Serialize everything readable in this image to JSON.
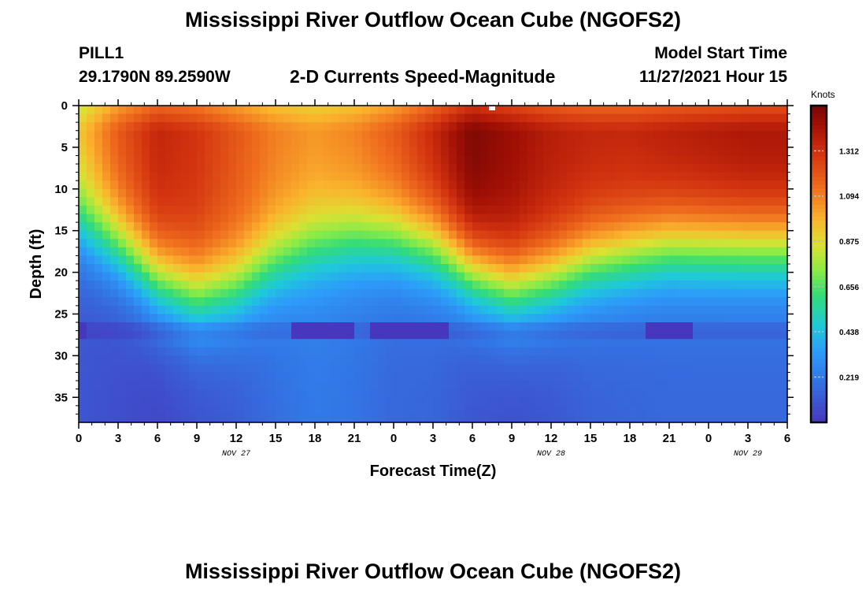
{
  "title_top": "Mississippi River Outflow Ocean Cube (NGOFS2)",
  "title_bottom": "Mississippi River Outflow Ocean Cube (NGOFS2)",
  "station": {
    "id": "PILL1",
    "coords": "29.1790N  89.2590W"
  },
  "model": {
    "label": "Model Start Time",
    "value": "11/27/2021 Hour 15"
  },
  "chart_data": {
    "type": "heatmap",
    "title": "2-D Currents Speed-Magnitude",
    "xlabel": "Forecast Time(Z)",
    "ylabel": "Depth (ft)",
    "x_ticks": [
      "0",
      "3",
      "6",
      "9",
      "12",
      "15",
      "18",
      "21",
      "0",
      "3",
      "6",
      "9",
      "12",
      "15",
      "18",
      "21",
      "0",
      "3",
      "6"
    ],
    "x_hours_from_start": [
      0,
      54
    ],
    "y_ticks": [
      0,
      5,
      10,
      15,
      20,
      25,
      30,
      35
    ],
    "ylim": [
      0,
      38
    ],
    "date_labels": [
      {
        "text": "NOV 27",
        "at_hour": 12
      },
      {
        "text": "NOV 28",
        "at_hour": 36
      },
      {
        "text": "NOV 29",
        "at_hour": 51
      }
    ],
    "colorbar": {
      "unit": "Knots",
      "ticks": [
        "1.312",
        "1.094",
        "0.875",
        "0.656",
        "0.438",
        "0.219"
      ],
      "tick_values": [
        1.312,
        1.094,
        0.875,
        0.656,
        0.438,
        0.219
      ],
      "range": [
        0,
        1.531
      ]
    },
    "speed_profile": {
      "surface_speed_knots": [
        [
          0,
          0.95
        ],
        [
          3,
          1.2
        ],
        [
          6,
          1.35
        ],
        [
          9,
          1.3
        ],
        [
          12,
          1.2
        ],
        [
          15,
          1.1
        ],
        [
          18,
          1.05
        ],
        [
          21,
          1.1
        ],
        [
          24,
          1.2
        ],
        [
          27,
          1.35
        ],
        [
          30,
          1.52
        ],
        [
          33,
          1.45
        ],
        [
          36,
          1.38
        ],
        [
          39,
          1.35
        ],
        [
          42,
          1.35
        ],
        [
          45,
          1.38
        ],
        [
          48,
          1.4
        ],
        [
          51,
          1.42
        ],
        [
          54,
          1.42
        ]
      ],
      "mixed_depth_ft": [
        [
          0,
          14
        ],
        [
          3,
          17
        ],
        [
          6,
          21
        ],
        [
          9,
          23
        ],
        [
          12,
          22
        ],
        [
          15,
          19
        ],
        [
          18,
          17
        ],
        [
          21,
          16
        ],
        [
          24,
          16
        ],
        [
          27,
          17
        ],
        [
          30,
          20
        ],
        [
          33,
          22
        ],
        [
          36,
          21
        ],
        [
          39,
          19
        ],
        [
          42,
          18
        ],
        [
          45,
          17
        ],
        [
          48,
          17
        ],
        [
          51,
          17
        ],
        [
          54,
          17
        ]
      ],
      "deep_speed_knots": [
        [
          0,
          0.1
        ],
        [
          6,
          0.05
        ],
        [
          12,
          0.12
        ],
        [
          15,
          0.18
        ],
        [
          18,
          0.22
        ],
        [
          21,
          0.2
        ],
        [
          24,
          0.16
        ],
        [
          27,
          0.15
        ],
        [
          30,
          0.1
        ],
        [
          33,
          0.08
        ],
        [
          36,
          0.1
        ],
        [
          39,
          0.14
        ],
        [
          42,
          0.15
        ],
        [
          45,
          0.16
        ],
        [
          48,
          0.16
        ],
        [
          51,
          0.16
        ],
        [
          54,
          0.16
        ]
      ],
      "dark_band_depth_ft": 27,
      "dark_band_intervals_h": [
        [
          0,
          0.4
        ],
        [
          16,
          21
        ],
        [
          22,
          28
        ],
        [
          43,
          47
        ]
      ]
    }
  }
}
